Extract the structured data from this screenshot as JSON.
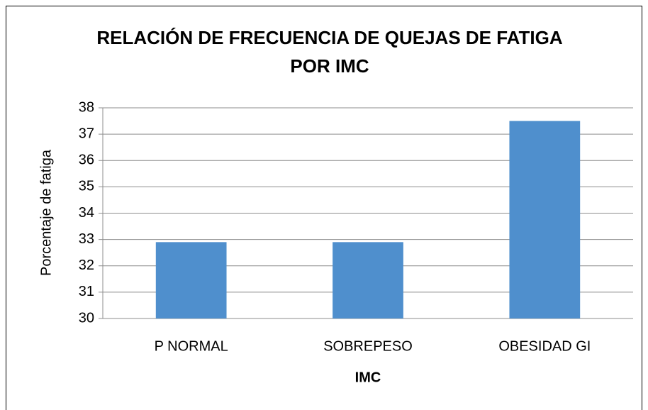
{
  "chart_data": {
    "type": "bar",
    "title": [
      "RELACIÓN DE FRECUENCIA DE QUEJAS DE FATIGA",
      "POR IMC"
    ],
    "x_label": "IMC",
    "y_label": "Porcentaje de fatiga",
    "categories": [
      "P NORMAL",
      "SOBREPESO",
      "OBESIDAD GI"
    ],
    "values": [
      32.9,
      32.9,
      37.5
    ],
    "color": "#4f8fcd",
    "ylim": [
      30,
      38
    ],
    "yticks": [
      30,
      31,
      32,
      33,
      34,
      35,
      36,
      37,
      38
    ],
    "grid": true
  }
}
